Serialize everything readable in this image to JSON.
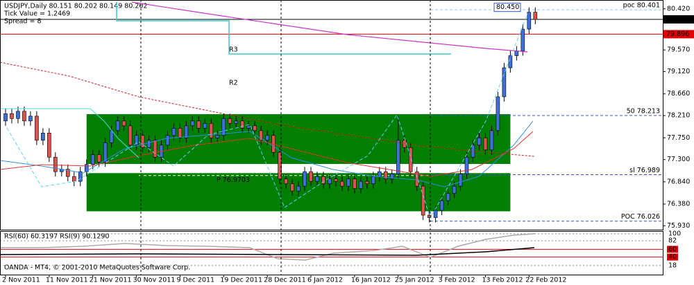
{
  "chart_data": [
    {
      "type": "candlestick",
      "title": "USDJPY,Daily 80.151 80.202 80.149 80.202",
      "subtitle": [
        "Tick Value = 1.2469",
        "Spread = 8"
      ],
      "annotations": [
        "R3",
        "R2"
      ],
      "categories": [
        "2 Nov 2011",
        null,
        null,
        null,
        null,
        null,
        null,
        "11 Nov 2011",
        null,
        null,
        null,
        null,
        null,
        null,
        "21 Nov 2011",
        null,
        null,
        null,
        null,
        null,
        null,
        "30 Nov 2011",
        null,
        null,
        null,
        null,
        null,
        null,
        "9 Dec 2011",
        null,
        null,
        null,
        null,
        null,
        null,
        "19 Dec 2011",
        null,
        null,
        null,
        null,
        null,
        null,
        "28 Dec 2011",
        null,
        null,
        null,
        null,
        null,
        null,
        "6 Jan 2012",
        null,
        null,
        null,
        null,
        null,
        null,
        "16 Jan 2012",
        null,
        null,
        null,
        null,
        null,
        null,
        "25 Jan 2012",
        null,
        null,
        null,
        null,
        null,
        null,
        "3 Feb 2012",
        null,
        null,
        null,
        null,
        null,
        null,
        "13 Feb 2012",
        null,
        null,
        null,
        null,
        null,
        null,
        "22 Feb 2012",
        null
      ],
      "open": [
        78.1,
        78.25,
        78.15,
        78.3,
        78.1,
        78.2,
        77.7,
        77.85,
        77.35,
        77.05,
        77.1,
        76.95,
        76.85,
        77.05,
        77.2,
        77.4,
        77.25,
        77.65,
        77.9,
        78.1,
        78.0,
        77.6,
        77.8,
        77.55,
        77.7,
        77.35,
        77.6,
        77.8,
        77.95,
        77.75,
        78.0,
        78.1,
        77.95,
        78.05,
        77.75,
        77.8,
        78.15,
        78.05,
        78.1,
        77.95,
        78.0,
        77.9,
        77.7,
        77.8,
        77.45,
        76.9,
        76.8,
        76.65,
        76.75,
        77.05,
        76.85,
        76.95,
        76.8,
        76.9,
        76.85,
        76.75,
        76.9,
        76.7,
        76.85,
        76.8,
        76.95,
        77.05,
        76.9,
        77.0,
        77.7,
        77.55,
        77.05,
        76.75,
        76.15,
        76.1,
        76.25,
        76.45,
        76.6,
        76.75,
        77.0,
        77.35,
        77.6,
        77.75,
        77.5,
        77.9,
        78.6,
        79.2,
        79.45,
        79.55,
        80.0,
        80.35
      ],
      "high": [
        78.35,
        78.35,
        78.4,
        78.4,
        78.3,
        78.3,
        77.95,
        77.95,
        77.45,
        77.2,
        77.2,
        77.05,
        77.15,
        77.3,
        77.5,
        77.5,
        77.75,
        78.0,
        78.2,
        78.2,
        78.1,
        77.9,
        77.9,
        77.8,
        77.8,
        77.7,
        77.9,
        78.05,
        78.05,
        78.1,
        78.2,
        78.2,
        78.15,
        78.15,
        77.9,
        78.25,
        78.25,
        78.2,
        78.2,
        78.1,
        78.1,
        78.0,
        77.9,
        77.9,
        77.55,
        77.0,
        76.9,
        76.85,
        77.15,
        77.15,
        77.05,
        77.05,
        77.0,
        77.0,
        76.95,
        77.0,
        77.0,
        76.95,
        76.95,
        77.05,
        77.15,
        77.15,
        77.1,
        78.2,
        77.8,
        77.65,
        77.15,
        76.85,
        76.25,
        76.35,
        76.55,
        76.7,
        76.85,
        77.1,
        77.45,
        77.7,
        77.85,
        77.85,
        78.0,
        78.7,
        79.3,
        79.55,
        79.65,
        80.1,
        80.45,
        80.45
      ],
      "low": [
        78.0,
        78.05,
        78.05,
        78.0,
        78.0,
        77.6,
        77.6,
        77.25,
        76.95,
        76.95,
        76.85,
        76.75,
        76.75,
        76.95,
        77.1,
        77.15,
        77.15,
        77.55,
        77.8,
        77.9,
        77.5,
        77.5,
        77.45,
        77.45,
        77.25,
        77.25,
        77.5,
        77.7,
        77.65,
        77.65,
        77.9,
        77.85,
        77.85,
        77.65,
        77.65,
        77.7,
        77.95,
        77.95,
        77.85,
        77.85,
        77.8,
        77.6,
        77.6,
        77.35,
        76.8,
        76.7,
        76.55,
        76.55,
        76.65,
        76.75,
        76.75,
        76.7,
        76.7,
        76.75,
        76.65,
        76.65,
        76.6,
        76.6,
        76.7,
        76.7,
        76.85,
        76.8,
        76.8,
        76.9,
        77.45,
        76.95,
        76.65,
        76.05,
        76.0,
        76.0,
        76.15,
        76.35,
        76.5,
        76.65,
        76.9,
        77.25,
        77.5,
        77.4,
        77.4,
        77.8,
        78.5,
        79.1,
        79.35,
        79.45,
        79.9,
        80.1
      ],
      "close": [
        78.25,
        78.15,
        78.3,
        78.1,
        78.2,
        77.7,
        77.85,
        77.35,
        77.05,
        77.1,
        76.95,
        76.85,
        77.05,
        77.2,
        77.4,
        77.25,
        77.65,
        77.9,
        78.1,
        78.0,
        77.6,
        77.8,
        77.55,
        77.7,
        77.35,
        77.6,
        77.8,
        77.95,
        77.75,
        78.0,
        78.1,
        77.95,
        78.05,
        77.75,
        77.8,
        78.15,
        78.05,
        78.1,
        77.95,
        78.0,
        77.9,
        77.7,
        77.8,
        77.45,
        76.9,
        76.8,
        76.65,
        76.75,
        77.05,
        76.85,
        76.95,
        76.8,
        76.9,
        76.85,
        76.75,
        76.9,
        76.7,
        76.85,
        76.8,
        76.95,
        77.05,
        76.9,
        77.0,
        77.7,
        77.55,
        77.05,
        76.75,
        76.15,
        76.1,
        76.25,
        76.45,
        76.6,
        76.75,
        77.0,
        77.35,
        77.6,
        77.75,
        77.5,
        77.9,
        78.6,
        79.2,
        79.45,
        79.55,
        80.0,
        80.35,
        80.2
      ],
      "up_color": "#3f6fd8",
      "down_color": "#d9534f",
      "zone_color": "#007f00",
      "zones": [
        {
          "from": 13,
          "to": 81,
          "low": 77.21,
          "high": 78.24
        },
        {
          "from": 13,
          "to": 81,
          "low": 76.23,
          "high": 77.02
        }
      ],
      "ylim": [
        75.85,
        80.56
      ],
      "yticks": [
        {
          "value": 80.42,
          "label": "80.420"
        },
        {
          "value": 79.57,
          "label": "79.570"
        },
        {
          "value": 79.12,
          "label": "79.120"
        },
        {
          "value": 78.66,
          "label": "78.660"
        },
        {
          "value": 78.21,
          "label": "78.210"
        },
        {
          "value": 77.75,
          "label": "77.750"
        },
        {
          "value": 77.3,
          "label": "77.300"
        },
        {
          "value": 76.84,
          "label": "76.840"
        },
        {
          "value": 76.38,
          "label": "76.380"
        },
        {
          "value": 75.93,
          "label": "75.930"
        }
      ],
      "levels": [
        {
          "label": "poc 80.401",
          "value": 80.401,
          "color": "#87ceeb"
        },
        {
          "label": "50  78.213",
          "value": 78.213,
          "color": "#3355cc"
        },
        {
          "label": "sl 76.989",
          "value": 76.989,
          "color": "#3355cc"
        },
        {
          "label": "POC 76.026",
          "value": 76.026,
          "color": "#3355cc"
        }
      ],
      "pivot": {
        "label": "P 76.9703",
        "value": 76.9703
      },
      "marker_box": {
        "label": "80.450",
        "value": 80.45
      },
      "price_labels": [
        {
          "label": "80.202",
          "value": 80.202,
          "color": "#000000"
        },
        {
          "label": "79.896",
          "value": 79.896,
          "color": "#e00000"
        }
      ]
    },
    {
      "type": "rsi",
      "title": "RSI(60) 60.3197 RSI(9) 90.1290",
      "ylim": [
        0,
        100
      ],
      "yticks": [
        100,
        82,
        18
      ],
      "levels": [
        60,
        40
      ],
      "levels_color": "#e00000"
    }
  ],
  "footer": "OANDA - MT4, © 2001-2010 MetaQuotes Software Corp."
}
